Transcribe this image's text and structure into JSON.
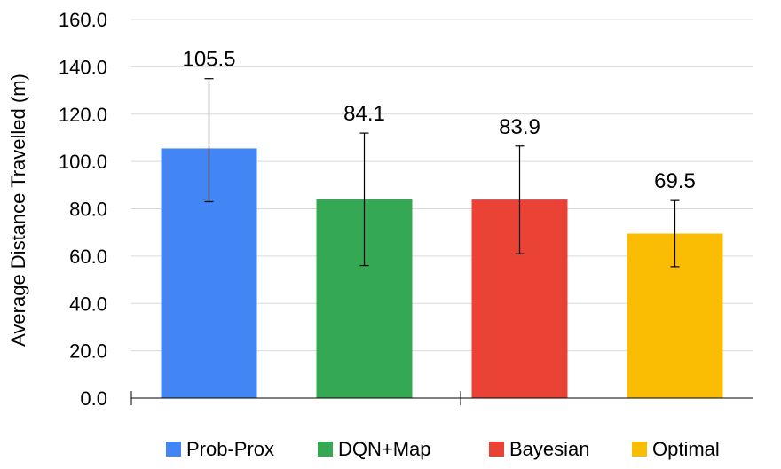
{
  "chart_data": {
    "type": "bar",
    "title": "",
    "xlabel": "",
    "ylabel": "Average Distance Travelled (m)",
    "ylim": [
      0,
      160
    ],
    "yticks": [
      "0.0",
      "20.0",
      "40.0",
      "60.0",
      "80.0",
      "100.0",
      "120.0",
      "140.0",
      "160.0"
    ],
    "grid": true,
    "legend_position": "bottom",
    "categories": [
      "Prob-Prox",
      "DQN+Map",
      "Bayesian",
      "Optimal"
    ],
    "values": [
      105.5,
      84.1,
      83.9,
      69.5
    ],
    "data_labels": [
      "105.5",
      "84.1",
      "83.9",
      "69.5"
    ],
    "error_bars": [
      {
        "low": 83.0,
        "high": 135.0
      },
      {
        "low": 56.0,
        "high": 112.0
      },
      {
        "low": 61.0,
        "high": 106.5
      },
      {
        "low": 55.5,
        "high": 83.5
      }
    ],
    "colors": [
      "#4285F4",
      "#34A853",
      "#EA4335",
      "#FBBC04"
    ],
    "legend": [
      "Prob-Prox",
      "DQN+Map",
      "Bayesian",
      "Optimal"
    ]
  }
}
